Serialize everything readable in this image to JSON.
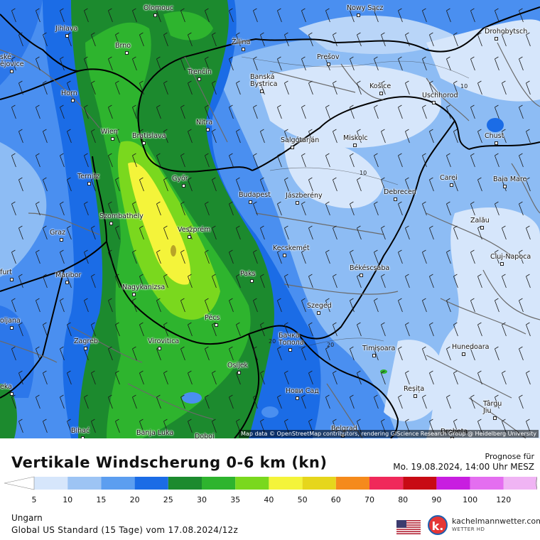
{
  "map": {
    "attribution": "Map data © OpenStreetMap contributors, rendering GIScience Research Group @ Heidelberg University",
    "cities": [
      {
        "name": "Olomouc"
      },
      {
        "name": "Nowy Sącz"
      },
      {
        "name": "Jihlava"
      },
      {
        "name": "Drohobytsch"
      },
      {
        "name": "Brno"
      },
      {
        "name": "Žilina"
      },
      {
        "name": "ské\nějovice"
      },
      {
        "name": "Prešov"
      },
      {
        "name": "Trenčín"
      },
      {
        "name": "Banská\nBystrica"
      },
      {
        "name": "Košice"
      },
      {
        "name": "Horn"
      },
      {
        "name": "Uschhorod"
      },
      {
        "name": "Nitra"
      },
      {
        "name": "Wien"
      },
      {
        "name": "Bratislava"
      },
      {
        "name": "Chust"
      },
      {
        "name": "Salgótarján"
      },
      {
        "name": "Miskolc"
      },
      {
        "name": "Ternitz"
      },
      {
        "name": "Győr"
      },
      {
        "name": "Carei"
      },
      {
        "name": "Baia Mare"
      },
      {
        "name": "Budapest"
      },
      {
        "name": "Jászberény"
      },
      {
        "name": "Debrecen"
      },
      {
        "name": "Szombathely"
      },
      {
        "name": "Zalău"
      },
      {
        "name": "Graz"
      },
      {
        "name": "Veszprém"
      },
      {
        "name": "Kecskemét"
      },
      {
        "name": "Cluj-Napoca"
      },
      {
        "name": "furt"
      },
      {
        "name": "Paks"
      },
      {
        "name": "Békéscsaba"
      },
      {
        "name": "Maribor"
      },
      {
        "name": "Nagykanizsa"
      },
      {
        "name": "Szeged"
      },
      {
        "name": "oljana"
      },
      {
        "name": "Pécs"
      },
      {
        "name": "Бачка\nТопола"
      },
      {
        "name": "Zagreb"
      },
      {
        "name": "Virovitica"
      },
      {
        "name": "Timișoara"
      },
      {
        "name": "Hunedoara"
      },
      {
        "name": "Osijek"
      },
      {
        "name": "eka"
      },
      {
        "name": "Reșița"
      },
      {
        "name": "Нови Сад"
      },
      {
        "name": "Târgu\nJiu"
      },
      {
        "name": "Bihać"
      },
      {
        "name": "Banja Luka"
      },
      {
        "name": "Doboj"
      },
      {
        "name": "Belgrad"
      },
      {
        "name": "Drobeta"
      }
    ],
    "contour_labels": [
      "10",
      "10",
      "10",
      "20",
      "20"
    ]
  },
  "footer": {
    "title": "Vertikale Windscherung 0-6 km (kn)",
    "forecast_label": "Prognose für",
    "forecast_date": "Mo. 19.08.2024, 14:00 Uhr MESZ",
    "region": "Ungarn",
    "model": "Global US Standard (15 Tage) vom 17.08.2024/12z",
    "brand_name": "kachelmannwetter.com",
    "brand_sub": "WETTER HD",
    "brand_letter": "k."
  },
  "legend": {
    "ticks": [
      "5",
      "10",
      "15",
      "20",
      "25",
      "30",
      "35",
      "40",
      "50",
      "60",
      "70",
      "80",
      "90",
      "100",
      "120"
    ],
    "colors": [
      "#d6e6fb",
      "#9dc4f4",
      "#5c9ef0",
      "#1b6ce6",
      "#1c8a2e",
      "#2eb42e",
      "#7ad81e",
      "#f4f43a",
      "#e6d61c",
      "#f58a1c",
      "#f0295a",
      "#c80a14",
      "#c81ee0",
      "#e46ef0",
      "#f0b4f4",
      "#f6dcf8"
    ]
  }
}
